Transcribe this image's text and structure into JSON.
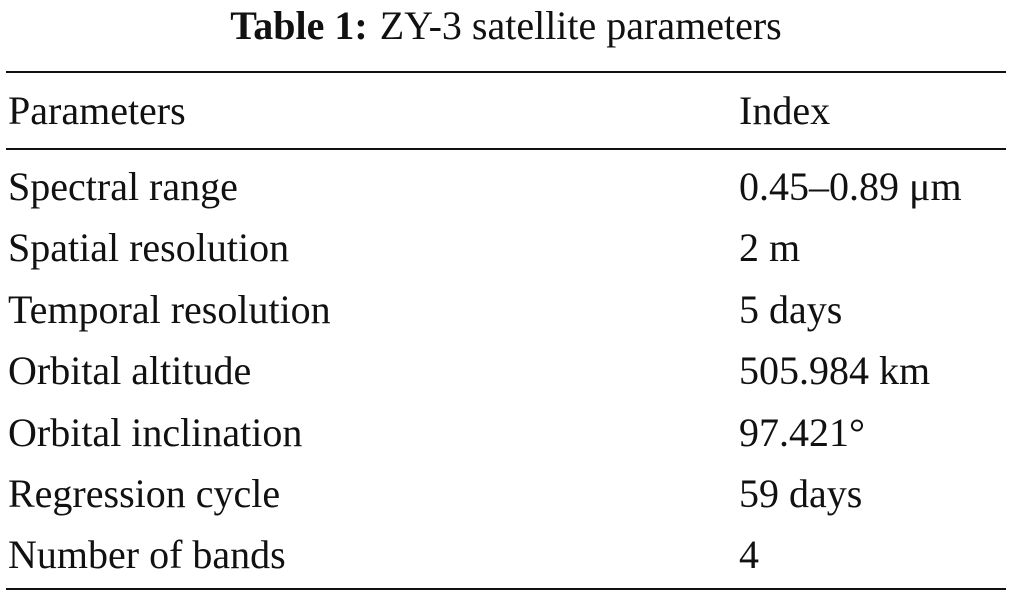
{
  "caption": {
    "label": "Table 1:",
    "title": "ZY-3 satellite parameters"
  },
  "columns": [
    "Parameters",
    "Index"
  ],
  "rows": [
    [
      "Spectral range",
      "0.45–0.89 μm"
    ],
    [
      "Spatial resolution",
      "2 m"
    ],
    [
      "Temporal resolution",
      "5 days"
    ],
    [
      "Orbital altitude",
      "505.984 km"
    ],
    [
      "Orbital inclination",
      "97.421°"
    ],
    [
      "Regression cycle",
      "59 days"
    ],
    [
      "Number of bands",
      "4"
    ]
  ]
}
